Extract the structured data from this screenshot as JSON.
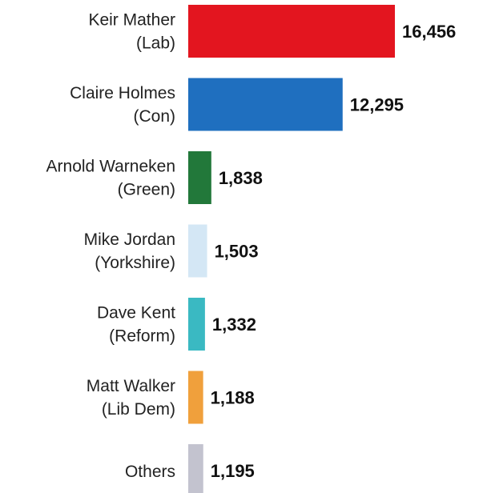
{
  "chart_data": {
    "type": "bar",
    "orientation": "horizontal",
    "categories": [
      [
        "Keir Mather",
        "(Lab)"
      ],
      [
        "Claire Holmes",
        "(Con)"
      ],
      [
        "Arnold Warneken",
        "(Green)"
      ],
      [
        "Mike Jordan",
        "(Yorkshire)"
      ],
      [
        "Dave Kent",
        "(Reform)"
      ],
      [
        "Matt Walker",
        "(Lib Dem)"
      ],
      [
        "Others"
      ]
    ],
    "values": [
      16456,
      12295,
      1838,
      1503,
      1332,
      1188,
      1195
    ],
    "value_labels": [
      "16,456",
      "12,295",
      "1,838",
      "1,503",
      "1,332",
      "1,188",
      "1,195"
    ],
    "colors": [
      "#e3151f",
      "#1f6fbf",
      "#22783a",
      "#d4e7f5",
      "#3ab9c2",
      "#f0a03c",
      "#c3c3cf"
    ],
    "xlim": [
      0,
      16456
    ],
    "grid": false,
    "legend": "none"
  }
}
